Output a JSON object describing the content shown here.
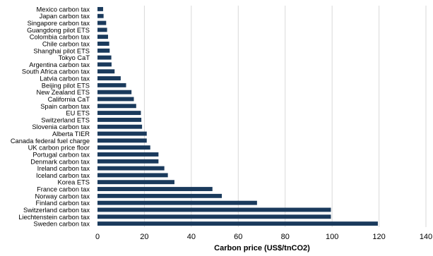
{
  "colors": {
    "bar": "#1a3a5c",
    "grid": "#d9d9d9",
    "text": "#000000"
  },
  "chart_data": {
    "type": "bar",
    "orientation": "horizontal",
    "title": "",
    "xlabel": "Carbon price (US$/tnCO2)",
    "ylabel": "",
    "xlim": [
      0,
      140
    ],
    "xticks": [
      0,
      20,
      40,
      60,
      80,
      100,
      120,
      140
    ],
    "grid": "vertical",
    "categories": [
      "Mexico carbon tax",
      "Japan carbon tax",
      "Singapore carbon tax",
      "Guangdong pilot ETS",
      "Colombia carbon tax",
      "Chile carbon tax",
      "Shanghai pilot ETS",
      "Tokyo CaT",
      "Argentina carbon tax",
      "South Africa carbon tax",
      "Latvia carbon tax",
      "Beijing pilot ETS",
      "New Zealand ETS",
      "California CaT",
      "Spain carbon tax",
      "EU ETS",
      "Switzerland ETS",
      "Slovenia carbon tax",
      "Alberta TIER",
      "Canada federal fuel charge",
      "UK carbon price floor",
      "Portugal carbon tax",
      "Denmark carbon tax",
      "Ireland carbon tax",
      "Iceland carbon tax",
      "Korea ETS",
      "France carbon tax",
      "Norway carbon tax",
      "Finland carbon tax",
      "Switzerland carbon tax",
      "Liechtenstein carbon tax",
      "Sweden carbon tax"
    ],
    "values": [
      2.4,
      2.6,
      3.7,
      4.1,
      4.5,
      5.0,
      5.2,
      5.9,
      6.0,
      7.3,
      9.9,
      12.2,
      14.5,
      15.5,
      16.5,
      18.5,
      18.7,
      19.0,
      21.0,
      21.0,
      22.5,
      26.0,
      26.0,
      28.5,
      30.0,
      32.8,
      49.0,
      53.0,
      68.0,
      99.5,
      99.5,
      119.5
    ]
  }
}
